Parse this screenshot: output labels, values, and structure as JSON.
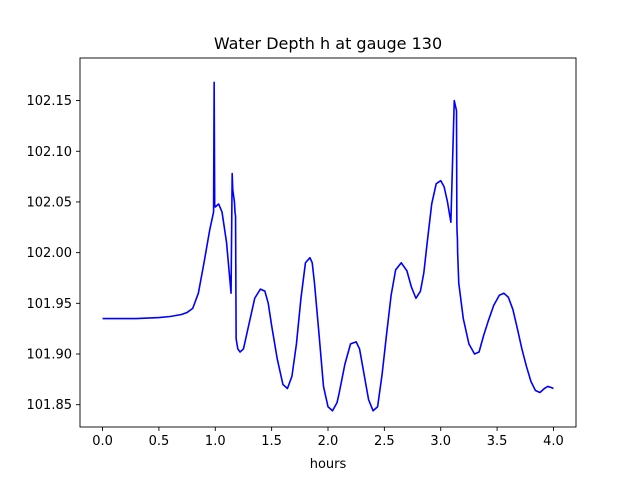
{
  "chart_data": {
    "type": "line",
    "title": "Water Depth h at gauge 130",
    "xlabel": "hours",
    "ylabel": "",
    "xlim": [
      -0.2,
      4.2
    ],
    "ylim": [
      101.828,
      102.192
    ],
    "xticks": [
      0.0,
      0.5,
      1.0,
      1.5,
      2.0,
      2.5,
      3.0,
      3.5,
      4.0
    ],
    "xtick_labels": [
      "0.0",
      "0.5",
      "1.0",
      "1.5",
      "2.0",
      "2.5",
      "3.0",
      "3.5",
      "4.0"
    ],
    "yticks": [
      101.85,
      101.9,
      101.95,
      102.0,
      102.05,
      102.1,
      102.15
    ],
    "ytick_labels": [
      "101.85",
      "101.90",
      "101.95",
      "102.00",
      "102.05",
      "102.10",
      "102.15"
    ],
    "grid": false,
    "series": [
      {
        "name": "",
        "color": "#0000ff",
        "x": [
          0.0,
          0.1,
          0.2,
          0.3,
          0.4,
          0.5,
          0.6,
          0.7,
          0.75,
          0.8,
          0.85,
          0.9,
          0.95,
          0.985,
          0.99,
          0.995,
          1.0,
          1.03,
          1.06,
          1.1,
          1.14,
          1.15,
          1.155,
          1.17,
          1.175,
          1.18,
          1.185,
          1.2,
          1.22,
          1.25,
          1.3,
          1.35,
          1.4,
          1.44,
          1.47,
          1.5,
          1.55,
          1.6,
          1.64,
          1.68,
          1.72,
          1.76,
          1.8,
          1.84,
          1.86,
          1.88,
          1.92,
          1.96,
          2.0,
          2.04,
          2.08,
          2.1,
          2.15,
          2.2,
          2.25,
          2.28,
          2.32,
          2.36,
          2.4,
          2.44,
          2.48,
          2.52,
          2.56,
          2.6,
          2.65,
          2.7,
          2.74,
          2.78,
          2.82,
          2.85,
          2.88,
          2.92,
          2.96,
          3.0,
          3.03,
          3.06,
          3.09,
          3.12,
          3.14,
          3.143,
          3.145,
          3.148,
          3.15,
          3.16,
          3.2,
          3.25,
          3.3,
          3.34,
          3.38,
          3.42,
          3.47,
          3.52,
          3.56,
          3.6,
          3.64,
          3.68,
          3.72,
          3.76,
          3.8,
          3.84,
          3.88,
          3.92,
          3.95,
          3.98,
          4.0
        ],
        "y": [
          101.935,
          101.935,
          101.935,
          101.935,
          101.9355,
          101.936,
          101.937,
          101.939,
          101.941,
          101.945,
          101.96,
          101.99,
          102.022,
          102.04,
          102.168,
          102.047,
          102.045,
          102.048,
          102.04,
          102.01,
          101.96,
          102.078,
          102.062,
          102.05,
          102.04,
          102.036,
          101.915,
          101.905,
          101.902,
          101.905,
          101.93,
          101.955,
          101.964,
          101.962,
          101.95,
          101.928,
          101.895,
          101.87,
          101.866,
          101.878,
          101.91,
          101.955,
          101.99,
          101.995,
          101.99,
          101.97,
          101.92,
          101.868,
          101.848,
          101.844,
          101.852,
          101.862,
          101.89,
          101.91,
          101.912,
          101.905,
          101.88,
          101.855,
          101.844,
          101.848,
          101.88,
          101.92,
          101.958,
          101.983,
          101.99,
          101.982,
          101.966,
          101.955,
          101.962,
          101.98,
          102.01,
          102.048,
          102.068,
          102.071,
          102.065,
          102.05,
          102.03,
          102.15,
          102.14,
          102.03,
          102.02,
          102.014,
          102.0,
          101.97,
          101.935,
          101.91,
          101.9,
          101.902,
          101.918,
          101.932,
          101.948,
          101.958,
          101.96,
          101.956,
          101.944,
          101.925,
          101.905,
          101.888,
          101.873,
          101.864,
          101.862,
          101.866,
          101.868,
          101.867,
          101.866
        ]
      }
    ]
  }
}
